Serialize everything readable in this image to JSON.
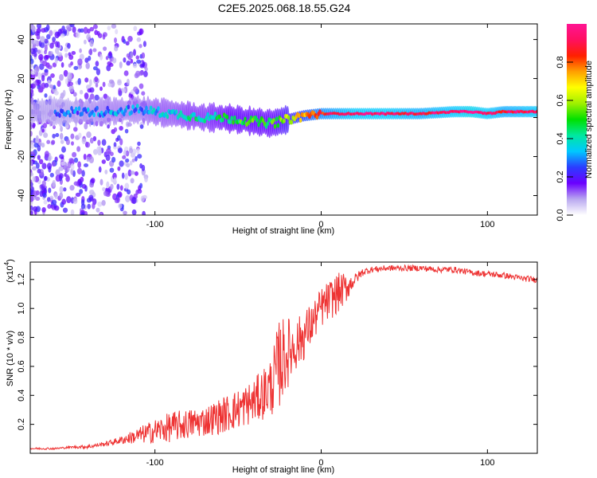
{
  "title": "C2E5.2025.068.18.55.G24",
  "chart_data": [
    {
      "type": "heatmap",
      "xlabel": "Height of straight line (km)",
      "ylabel": "Frequency (Hz)",
      "xlim": [
        -175,
        130
      ],
      "ylim": [
        -50,
        48
      ],
      "xticks": [
        -100,
        0,
        100
      ],
      "yticks": [
        -40,
        -20,
        0,
        20,
        40
      ],
      "colorbar": {
        "label": "Normalized spectral amplitude",
        "range": [
          0,
          1
        ],
        "ticks": [
          "0.0",
          "0.2",
          "0.4",
          "0.6",
          "0.8"
        ],
        "colors": [
          "#ffffff",
          "#b9a8f0",
          "#6b00ff",
          "#2b3cff",
          "#00c8ff",
          "#00e8a0",
          "#00e000",
          "#9ef000",
          "#ffff00",
          "#ffa000",
          "#ff2000",
          "#ff1060",
          "#ff1493"
        ]
      },
      "ridge": {
        "x": [
          -150,
          -130,
          -110,
          -100,
          -90,
          -80,
          -70,
          -60,
          -50,
          -40,
          -30,
          -20,
          -10,
          0,
          10,
          20,
          40,
          60,
          80,
          90,
          100,
          110,
          130
        ],
        "freq": [
          3,
          3,
          4,
          3,
          2,
          1,
          0,
          0,
          -1,
          -2,
          -3,
          -1,
          1,
          2,
          2,
          2,
          2,
          2,
          3,
          3,
          2,
          3,
          3
        ],
        "amplitude": [
          0.25,
          0.3,
          0.3,
          0.35,
          0.35,
          0.4,
          0.4,
          0.45,
          0.5,
          0.5,
          0.5,
          0.6,
          0.75,
          0.85,
          0.9,
          0.95,
          0.95,
          0.9,
          0.95,
          1.0,
          0.95,
          0.9,
          0.95
        ]
      }
    },
    {
      "type": "line",
      "xlabel": "Height of straight line (km)",
      "ylabel": "SNR (10 * v/v)",
      "yscale_label": "(x10",
      "yscale_exp": "4",
      "yscale_close": ")",
      "xlim": [
        -175,
        130
      ],
      "ylim": [
        0,
        1.32
      ],
      "xticks": [
        -100,
        0,
        100
      ],
      "yticks": [
        "0.2",
        "0.4",
        "0.6",
        "0.8",
        "1.0",
        "1.2"
      ],
      "color": "#ee3333",
      "series": [
        {
          "x": [
            -175,
            -160,
            -150,
            -140,
            -130,
            -120,
            -110,
            -100,
            -90,
            -80,
            -70,
            -60,
            -50,
            -40,
            -30,
            -25,
            -20,
            -15,
            -10,
            -5,
            0,
            5,
            10,
            15,
            20,
            25,
            30,
            40,
            50,
            60,
            70,
            80,
            90,
            100,
            110,
            120,
            130
          ],
          "y": [
            0.03,
            0.03,
            0.04,
            0.04,
            0.06,
            0.08,
            0.1,
            0.12,
            0.14,
            0.16,
            0.18,
            0.21,
            0.25,
            0.3,
            0.38,
            0.5,
            0.6,
            0.68,
            0.75,
            0.85,
            0.95,
            1.0,
            1.05,
            1.1,
            1.18,
            1.24,
            1.26,
            1.27,
            1.27,
            1.27,
            1.26,
            1.26,
            1.24,
            1.23,
            1.22,
            1.2,
            1.19
          ],
          "spread": [
            0.01,
            0.01,
            0.01,
            0.02,
            0.02,
            0.04,
            0.08,
            0.12,
            0.15,
            0.15,
            0.15,
            0.18,
            0.2,
            0.22,
            0.3,
            0.45,
            0.35,
            0.25,
            0.25,
            0.2,
            0.2,
            0.2,
            0.2,
            0.15,
            0.06,
            0.04,
            0.03,
            0.03,
            0.03,
            0.03,
            0.03,
            0.03,
            0.03,
            0.03,
            0.03,
            0.03,
            0.03
          ]
        }
      ]
    }
  ]
}
